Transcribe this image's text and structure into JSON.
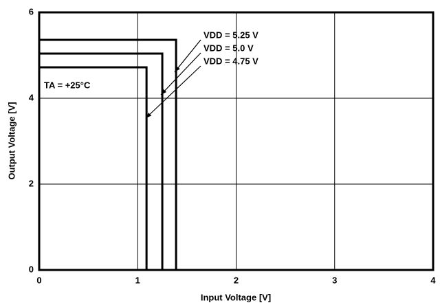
{
  "chart_data": {
    "type": "line",
    "x_label": "Input Voltage [V]",
    "y_label": "Output Voltage [V]",
    "xlim": [
      0,
      4
    ],
    "ylim": [
      0,
      6
    ],
    "xticks": [
      0,
      1,
      2,
      3,
      4
    ],
    "yticks": [
      0,
      2,
      4,
      6
    ],
    "grid": true,
    "series": [
      {
        "name": "VDD = 5.25 V",
        "color": "#000000",
        "x": [
          0,
          1.39,
          1.39
        ],
        "values": [
          5.36,
          5.36,
          0
        ]
      },
      {
        "name": "VDD = 5.0 V",
        "color": "#000000",
        "x": [
          0,
          1.25,
          1.25
        ],
        "values": [
          5.04,
          5.04,
          0
        ]
      },
      {
        "name": "VDD = 4.75 V",
        "color": "#000000",
        "x": [
          0,
          1.09,
          1.09
        ],
        "values": [
          4.72,
          4.72,
          0
        ]
      }
    ],
    "annotations": [
      "TA = +25°C"
    ]
  }
}
